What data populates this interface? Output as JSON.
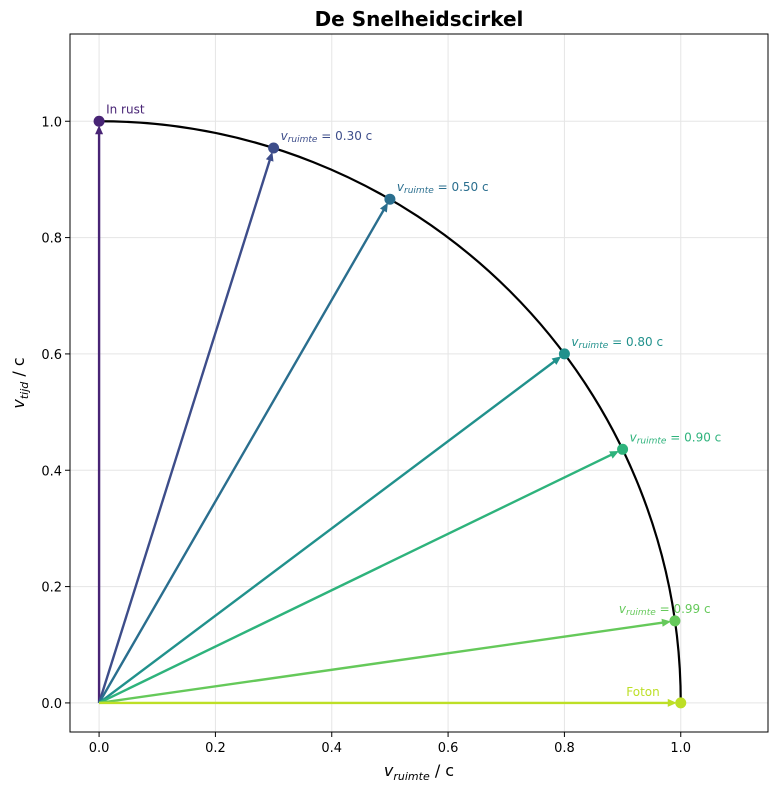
{
  "chart_data": {
    "type": "line",
    "title": "De Snelheidscirkel",
    "xlabel": {
      "main": "v",
      "sub": "ruimte",
      "unit": " / c"
    },
    "ylabel": {
      "main": "v",
      "sub": "tijd",
      "unit": " / c"
    },
    "xlim": [
      -0.05,
      1.15
    ],
    "ylim": [
      -0.05,
      1.15
    ],
    "xticks": [
      "0.0",
      "0.2",
      "0.4",
      "0.6",
      "0.8",
      "1.0"
    ],
    "yticks": [
      "0.0",
      "0.2",
      "0.4",
      "0.6",
      "0.8",
      "1.0"
    ],
    "grid": true,
    "circle": {
      "radius": 1.0,
      "color": "#000000"
    },
    "vectors": [
      {
        "v": 0.0,
        "x": 0.0,
        "y": 1.0,
        "color": "#482475",
        "label": "In rust",
        "label_type": "plain"
      },
      {
        "v": 0.3,
        "x": 0.3,
        "y": 0.954,
        "color": "#3d4d8a",
        "label_main": "v",
        "label_sub": "ruimte",
        "label_rest": " = 0.30 c",
        "label_type": "speed"
      },
      {
        "v": 0.5,
        "x": 0.5,
        "y": 0.866,
        "color": "#2a6e8e",
        "label_main": "v",
        "label_sub": "ruimte",
        "label_rest": " = 0.50 c",
        "label_type": "speed"
      },
      {
        "v": 0.8,
        "x": 0.8,
        "y": 0.6,
        "color": "#21918c",
        "label_main": "v",
        "label_sub": "ruimte",
        "label_rest": " = 0.80 c",
        "label_type": "speed"
      },
      {
        "v": 0.9,
        "x": 0.9,
        "y": 0.436,
        "color": "#2eb37c",
        "label_main": "v",
        "label_sub": "ruimte",
        "label_rest": " = 0.90 c",
        "label_type": "speed"
      },
      {
        "v": 0.99,
        "x": 0.99,
        "y": 0.141,
        "color": "#65c95a",
        "label_main": "v",
        "label_sub": "ruimte",
        "label_rest": " = 0.99 c",
        "label_type": "speed"
      },
      {
        "v": 1.0,
        "x": 1.0,
        "y": 0.0,
        "color": "#bddf26",
        "label": "Foton",
        "label_type": "plain"
      }
    ]
  }
}
